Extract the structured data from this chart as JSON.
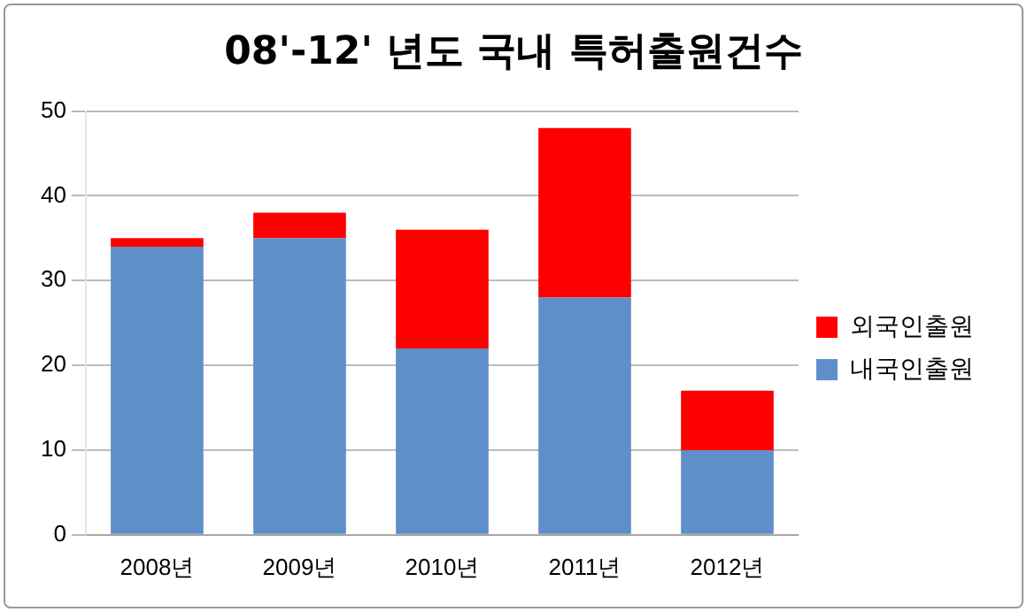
{
  "chart_data": {
    "type": "bar",
    "title": "08'-12' 년도 국내 특허출원건수",
    "categories": [
      "2008년",
      "2009년",
      "2010년",
      "2011년",
      "2012년"
    ],
    "stacked": true,
    "series": [
      {
        "name": "내국인출원",
        "color": "#5f8fc8",
        "values": [
          34,
          35,
          22,
          28,
          10
        ]
      },
      {
        "name": "외국인출원",
        "color": "#ff0000",
        "values": [
          1,
          3,
          14,
          20,
          7
        ]
      }
    ],
    "ylim": [
      0,
      50
    ],
    "yticks": [
      0,
      10,
      20,
      30,
      40,
      50
    ],
    "grid": "y",
    "legend": "right"
  }
}
